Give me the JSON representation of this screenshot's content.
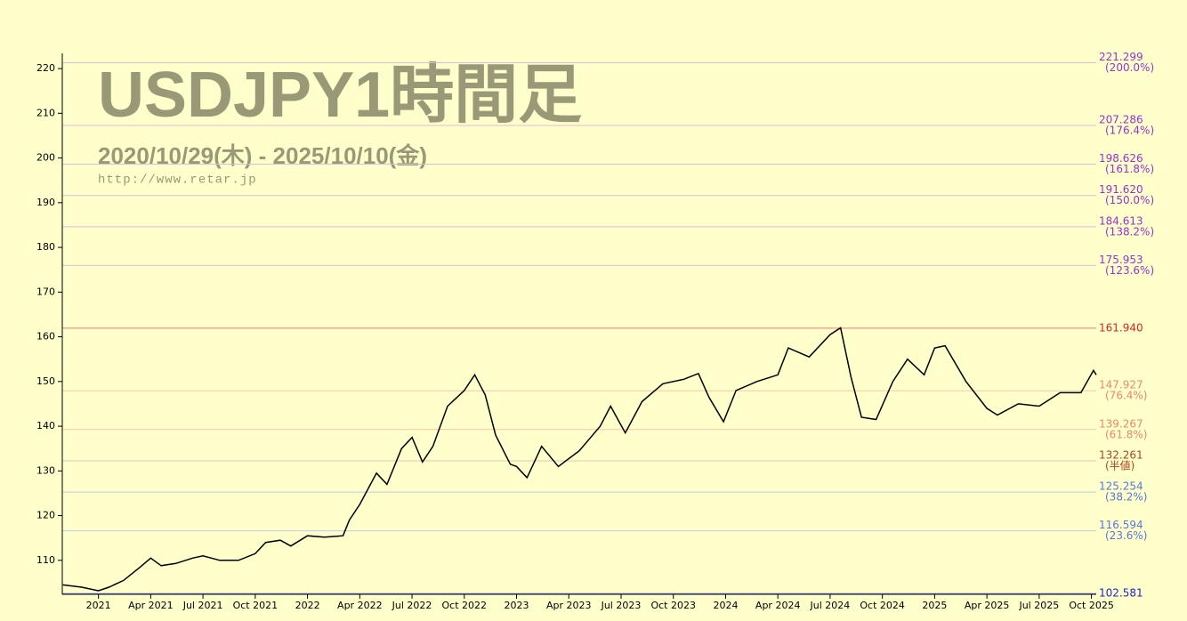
{
  "chart_data": {
    "type": "line",
    "title": "USDJPY1時間足",
    "subtitle": "2020/10/29(木) - 2025/10/10(金)",
    "url": "http://www.retar.jp",
    "color": "#000000",
    "x": [
      2020.83,
      2020.92,
      2021.0,
      2021.05,
      2021.12,
      2021.2,
      2021.25,
      2021.3,
      2021.37,
      2021.45,
      2021.5,
      2021.58,
      2021.67,
      2021.75,
      2021.8,
      2021.87,
      2021.92,
      2022.0,
      2022.08,
      2022.17,
      2022.2,
      2022.25,
      2022.33,
      2022.38,
      2022.45,
      2022.5,
      2022.55,
      2022.6,
      2022.67,
      2022.75,
      2022.8,
      2022.85,
      2022.9,
      2022.97,
      2023.0,
      2023.05,
      2023.12,
      2023.2,
      2023.3,
      2023.4,
      2023.45,
      2023.52,
      2023.6,
      2023.7,
      2023.8,
      2023.87,
      2023.92,
      2023.99,
      2024.05,
      2024.15,
      2024.25,
      2024.3,
      2024.4,
      2024.5,
      2024.55,
      2024.6,
      2024.65,
      2024.72,
      2024.8,
      2024.87,
      2024.95,
      2025.0,
      2025.05,
      2025.15,
      2025.25,
      2025.3,
      2025.4,
      2025.5,
      2025.6,
      2025.7,
      2025.76,
      2025.773
    ],
    "values": [
      104.5,
      104.0,
      103.2,
      104.0,
      105.5,
      108.5,
      110.5,
      108.8,
      109.3,
      110.5,
      111.0,
      110.0,
      110.0,
      111.5,
      114.0,
      114.5,
      113.2,
      115.5,
      115.2,
      115.5,
      119.0,
      122.5,
      129.5,
      127.0,
      135.0,
      137.5,
      132.0,
      135.5,
      144.5,
      148.0,
      151.5,
      147.0,
      138.0,
      131.5,
      131.0,
      128.5,
      135.5,
      131.0,
      134.5,
      140.0,
      144.5,
      138.5,
      145.5,
      149.5,
      150.5,
      151.8,
      146.5,
      141.0,
      148.0,
      150.0,
      151.5,
      157.5,
      155.5,
      160.5,
      162.0,
      151.0,
      142.0,
      141.5,
      150.0,
      155.0,
      151.5,
      157.5,
      158.0,
      150.0,
      144.0,
      142.5,
      145.0,
      144.5,
      147.5,
      147.5,
      152.5,
      151.5
    ],
    "xlim": [
      2020.827,
      2025.773
    ],
    "xticks": [
      {
        "value": 2021,
        "label": "2021"
      },
      {
        "value": 2021.25,
        "label": "Apr 2021"
      },
      {
        "value": 2021.5,
        "label": "Jul 2021"
      },
      {
        "value": 2021.75,
        "label": "Oct 2021"
      },
      {
        "value": 2022,
        "label": "2022"
      },
      {
        "value": 2022.25,
        "label": "Apr 2022"
      },
      {
        "value": 2022.5,
        "label": "Jul 2022"
      },
      {
        "value": 2022.75,
        "label": "Oct 2022"
      },
      {
        "value": 2023,
        "label": "2023"
      },
      {
        "value": 2023.25,
        "label": "Apr 2023"
      },
      {
        "value": 2023.5,
        "label": "Jul 2023"
      },
      {
        "value": 2023.75,
        "label": "Oct 2023"
      },
      {
        "value": 2024,
        "label": "2024"
      },
      {
        "value": 2024.25,
        "label": "Apr 2024"
      },
      {
        "value": 2024.5,
        "label": "Jul 2024"
      },
      {
        "value": 2024.75,
        "label": "Oct 2024"
      },
      {
        "value": 2025,
        "label": "2025"
      },
      {
        "value": 2025.25,
        "label": "Apr 2025"
      },
      {
        "value": 2025.5,
        "label": "Jul 2025"
      },
      {
        "value": 2025.75,
        "label": "Oct 2025"
      }
    ],
    "ylim": [
      102.4,
      223.4
    ],
    "yticks": [
      110,
      120,
      130,
      140,
      150,
      160,
      170,
      180,
      190,
      200,
      210,
      220
    ],
    "levels": [
      {
        "value": 221.299,
        "label": "221.299",
        "ratio": "(200.0%)",
        "color": "#9933cc",
        "line": "#e8b8d8"
      },
      {
        "value": 207.286,
        "label": "207.286",
        "ratio": "(176.4%)",
        "color": "#9933cc",
        "line": "#e8b8d8"
      },
      {
        "value": 198.626,
        "label": "198.626",
        "ratio": "(161.8%)",
        "color": "#9933cc",
        "line": "#e8b8d8"
      },
      {
        "value": 191.62,
        "label": "191.620",
        "ratio": "(150.0%)",
        "color": "#9933cc",
        "line": "#e8b8d8"
      },
      {
        "value": 184.613,
        "label": "184.613",
        "ratio": "(138.2%)",
        "color": "#9933cc",
        "line": "#e8b8d8"
      },
      {
        "value": 175.953,
        "label": "175.953",
        "ratio": "(123.6%)",
        "color": "#9933cc",
        "line": "#e8b8d8"
      },
      {
        "value": 161.94,
        "label": "161.940",
        "color": "#dd2222",
        "line": "#ee7777"
      },
      {
        "value": 147.927,
        "label": "147.927",
        "ratio": "(76.4%)",
        "color": "#ee8866",
        "line": "#f0c8a8"
      },
      {
        "value": 139.267,
        "label": "139.267",
        "ratio": "(61.8%)",
        "color": "#ee8866",
        "line": "#f0c8a8"
      },
      {
        "value": 132.261,
        "label": "132.261",
        "ratio": "(半値)",
        "color": "#aa4422",
        "line": "#e8c0b8"
      },
      {
        "value": 125.254,
        "label": "125.254",
        "ratio": "(38.2%)",
        "color": "#5577dd",
        "line": "#c8c8e8"
      },
      {
        "value": 116.594,
        "label": "116.594",
        "ratio": "(23.6%)",
        "color": "#5577dd",
        "line": "#c8c8e8"
      },
      {
        "value": 102.581,
        "label": "102.581",
        "color": "#2222cc",
        "line": "#8888dd"
      }
    ]
  }
}
